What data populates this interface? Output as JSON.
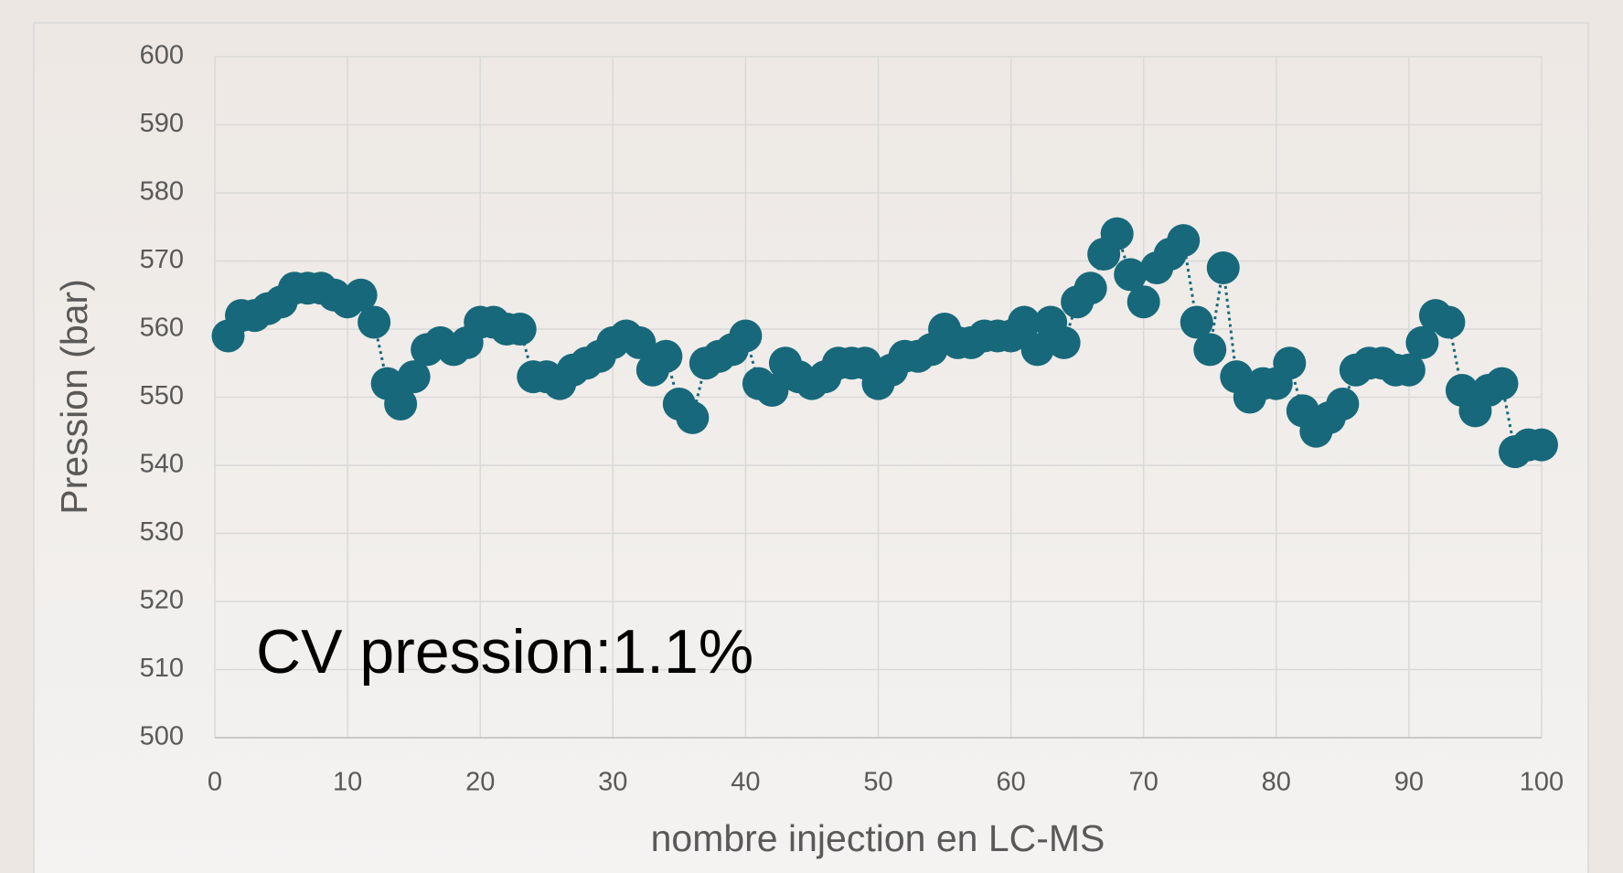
{
  "chart_data": {
    "type": "line",
    "xlabel": "nombre injection en LC-MS",
    "ylabel": "Pression (bar)",
    "annotation": "CV pression:1.1%",
    "x": [
      1,
      2,
      3,
      4,
      5,
      6,
      7,
      8,
      9,
      10,
      11,
      12,
      13,
      14,
      15,
      16,
      17,
      18,
      19,
      20,
      21,
      22,
      23,
      24,
      25,
      26,
      27,
      28,
      29,
      30,
      31,
      32,
      33,
      34,
      35,
      36,
      37,
      38,
      39,
      40,
      41,
      42,
      43,
      44,
      45,
      46,
      47,
      48,
      49,
      50,
      51,
      52,
      53,
      54,
      55,
      56,
      57,
      58,
      59,
      60,
      61,
      62,
      63,
      64,
      65,
      66,
      67,
      68,
      69,
      70,
      71,
      72,
      73,
      74,
      75,
      76,
      77,
      78,
      79,
      80,
      81,
      82,
      83,
      84,
      85,
      86,
      87,
      88,
      89,
      90,
      91,
      92,
      93,
      94,
      95,
      96,
      97,
      98,
      99,
      100
    ],
    "series": [
      {
        "name": "Pression",
        "color": "#17687a",
        "values": [
          559,
          562,
          562,
          563,
          564,
          566,
          566,
          566,
          565,
          564,
          565,
          561,
          552,
          549,
          553,
          557,
          558,
          557,
          558,
          561,
          561,
          560,
          560,
          553,
          553,
          552,
          554,
          555,
          556,
          558,
          559,
          558,
          554,
          556,
          549,
          547,
          555,
          556,
          557,
          559,
          552,
          551,
          555,
          553,
          552,
          553,
          555,
          555,
          555,
          552,
          554,
          556,
          556,
          557,
          560,
          558,
          558,
          559,
          559,
          559,
          561,
          557,
          561,
          558,
          564,
          566,
          571,
          574,
          568,
          564,
          569,
          571,
          573,
          561,
          557,
          569,
          553,
          550,
          552,
          552,
          555,
          548,
          545,
          547,
          549,
          554,
          555,
          555,
          554,
          554,
          558,
          562,
          561,
          551,
          548,
          551,
          552,
          542,
          543,
          543
        ]
      }
    ],
    "xlim": [
      0,
      100
    ],
    "xticks": [
      0,
      10,
      20,
      30,
      40,
      50,
      60,
      70,
      80,
      90,
      100
    ],
    "ylim": [
      500,
      600
    ],
    "yticks": [
      500,
      510,
      520,
      530,
      540,
      550,
      560,
      570,
      580,
      590,
      600
    ],
    "grid": true,
    "markers": true,
    "line_style": "dotted"
  }
}
